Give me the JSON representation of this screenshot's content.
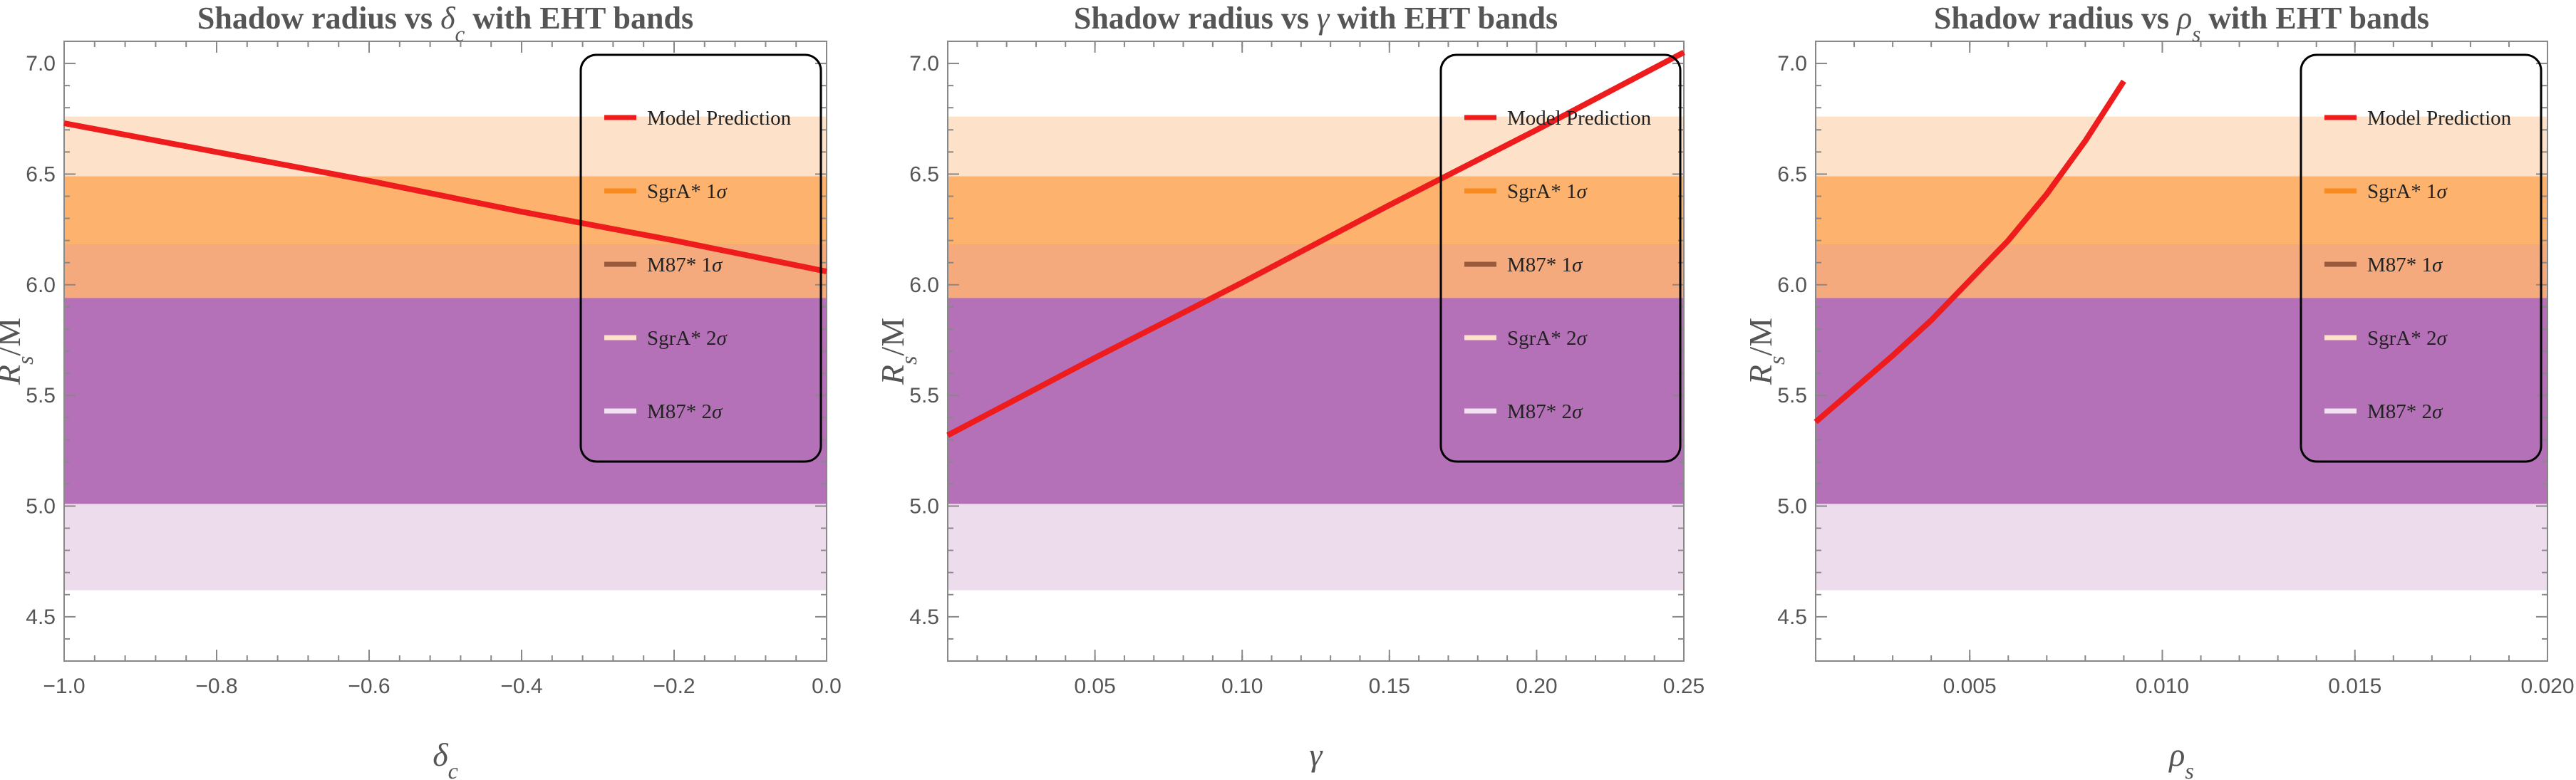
{
  "chart_data": [
    {
      "type": "line",
      "title": "Shadow radius vs δc with EHT bands",
      "xlabel": "δc",
      "ylabel": "Rs/M",
      "xlim": [
        -1.0,
        0.0
      ],
      "ylim": [
        4.3,
        7.1
      ],
      "xticks": [
        -1.0,
        -0.8,
        -0.6,
        -0.4,
        -0.2,
        0.0
      ],
      "xtick_labels": [
        "−1.0",
        "−0.8",
        "−0.6",
        "−0.4",
        "−0.2",
        "0.0"
      ],
      "yticks": [
        4.5,
        5.0,
        5.5,
        6.0,
        6.5,
        7.0
      ],
      "ytick_labels": [
        "4.5",
        "5.0",
        "5.5",
        "6.0",
        "6.5",
        "7.0"
      ],
      "series": [
        {
          "name": "Model Prediction",
          "color": "#ee1c1c",
          "x": [
            -1.0,
            -0.8,
            -0.6,
            -0.4,
            -0.2,
            0.0
          ],
          "y": [
            6.73,
            6.6,
            6.47,
            6.33,
            6.2,
            6.06
          ]
        }
      ]
    },
    {
      "type": "line",
      "title": "Shadow radius vs γ  with EHT bands",
      "xlabel": "γ",
      "ylabel": "Rs/M",
      "xlim": [
        0.0,
        0.25
      ],
      "ylim": [
        4.3,
        7.1
      ],
      "xticks": [
        0.05,
        0.1,
        0.15,
        0.2,
        0.25
      ],
      "xtick_labels": [
        "0.05",
        "0.10",
        "0.15",
        "0.20",
        "0.25"
      ],
      "yticks": [
        4.5,
        5.0,
        5.5,
        6.0,
        6.5,
        7.0
      ],
      "ytick_labels": [
        "4.5",
        "5.0",
        "5.5",
        "6.0",
        "6.5",
        "7.0"
      ],
      "series": [
        {
          "name": "Model Prediction",
          "color": "#ee1c1c",
          "x": [
            0.0,
            0.05,
            0.1,
            0.15,
            0.2,
            0.25
          ],
          "y": [
            5.32,
            5.67,
            6.01,
            6.36,
            6.7,
            7.05
          ]
        }
      ]
    },
    {
      "type": "line",
      "title": "Shadow radius vs ρs with EHT bands",
      "xlabel": "ρs",
      "ylabel": "Rs/M",
      "xlim": [
        0.001,
        0.02
      ],
      "ylim": [
        4.3,
        7.1
      ],
      "xticks": [
        0.005,
        0.01,
        0.015,
        0.02
      ],
      "xtick_labels": [
        "0.005",
        "0.010",
        "0.015",
        "0.020"
      ],
      "yticks": [
        4.5,
        5.0,
        5.5,
        6.0,
        6.5,
        7.0
      ],
      "ytick_labels": [
        "4.5",
        "5.0",
        "5.5",
        "6.0",
        "6.5",
        "7.0"
      ],
      "series": [
        {
          "name": "Model Prediction",
          "color": "#ee1c1c",
          "x": [
            0.001,
            0.002,
            0.003,
            0.004,
            0.005,
            0.006,
            0.007,
            0.008,
            0.009
          ],
          "y": [
            5.38,
            5.53,
            5.68,
            5.84,
            6.02,
            6.2,
            6.41,
            6.65,
            6.92
          ]
        }
      ]
    }
  ],
  "bands": [
    {
      "name": "SgrA* 2σ",
      "y0": 4.62,
      "y1": 6.76,
      "color": "#fde2c9"
    },
    {
      "name": "M87* 2σ",
      "y0": 4.62,
      "y1": 5.92,
      "color": "#eddcec"
    },
    {
      "name": "SgrA* 1σ",
      "y0": 5.94,
      "y1": 6.49,
      "color": "#fdb36e"
    },
    {
      "name": "M87* 1σ",
      "y0": 5.01,
      "y1": 6.18,
      "color": "#b571b7"
    },
    {
      "name": "overlap",
      "y0": 5.94,
      "y1": 6.18,
      "color": "#f5aa7e"
    },
    {
      "name": "overlap-2",
      "y0": 5.78,
      "y1": 5.94,
      "color": "#b571b7"
    }
  ],
  "legend": {
    "placement": "top-right",
    "items": [
      {
        "label": "Model Prediction",
        "color": "#ee1c1c"
      },
      {
        "label": "SgrA* 1σ",
        "color": "#f98a1f"
      },
      {
        "label": "M87* 1σ",
        "color": "#9a5a3c"
      },
      {
        "label": "SgrA* 2σ",
        "color": "#fde2c9"
      },
      {
        "label": "M87* 2σ",
        "color": "#f1e4f0"
      }
    ]
  },
  "colors": {
    "frame": "#888888",
    "text": "#555555"
  }
}
